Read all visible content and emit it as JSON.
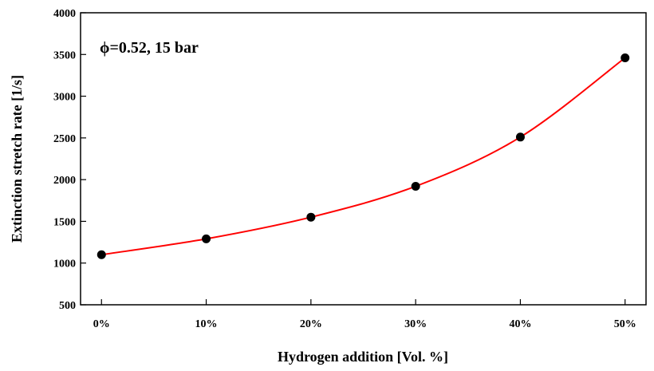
{
  "chart_data": {
    "type": "line",
    "xlabel": "Hydrogen addition [Vol. %]",
    "ylabel": "Extinction stretch rate [1/s]",
    "categories": [
      "0%",
      "10%",
      "20%",
      "30%",
      "40%",
      "50%"
    ],
    "x": [
      0,
      10,
      20,
      30,
      40,
      50
    ],
    "xlim": [
      -2,
      52
    ],
    "ylim": [
      500,
      4000
    ],
    "yticks": [
      500,
      1000,
      1500,
      2000,
      2500,
      3000,
      3500,
      4000
    ],
    "grid": false,
    "annotation": "ϕ=0.52, 15 bar",
    "series": [
      {
        "values": [
          1100,
          1290,
          1550,
          1920,
          2510,
          3460
        ],
        "line_color": "#ff0000",
        "marker_color": "#000000"
      }
    ]
  }
}
